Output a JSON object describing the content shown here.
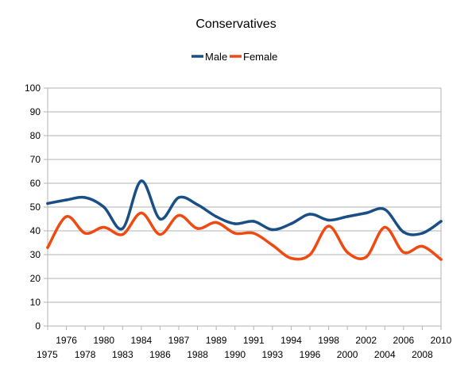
{
  "chart_data": {
    "type": "line",
    "title": "Conservatives",
    "xlabel": "",
    "ylabel": "",
    "legend_position": "top",
    "grid": true,
    "ylim": [
      0,
      100
    ],
    "y_ticks": [
      "0",
      "10",
      "20",
      "30",
      "40",
      "50",
      "60",
      "70",
      "80",
      "90",
      "100"
    ],
    "categories": [
      "1975",
      "1976",
      "1978",
      "1980",
      "1983",
      "1984",
      "1986",
      "1987",
      "1988",
      "1989",
      "1990",
      "1991",
      "1993",
      "1994",
      "1996",
      "1998",
      "2000",
      "2002",
      "2004",
      "2006",
      "2008",
      "2010"
    ],
    "series": [
      {
        "name": "Male",
        "color": "#1a4f86",
        "values": [
          51.5,
          53,
          54,
          50,
          41,
          61,
          45,
          54,
          51,
          46,
          43,
          44,
          40.5,
          43,
          47,
          44.5,
          46,
          47.5,
          49,
          39.5,
          39,
          44
        ]
      },
      {
        "name": "Female",
        "color": "#ee4a12",
        "values": [
          33,
          46,
          39,
          41.5,
          38.5,
          47.5,
          38.5,
          46.5,
          41,
          43.5,
          39,
          39,
          34,
          28.5,
          30,
          42,
          31,
          29,
          41.5,
          31,
          33.5,
          28
        ]
      }
    ]
  }
}
